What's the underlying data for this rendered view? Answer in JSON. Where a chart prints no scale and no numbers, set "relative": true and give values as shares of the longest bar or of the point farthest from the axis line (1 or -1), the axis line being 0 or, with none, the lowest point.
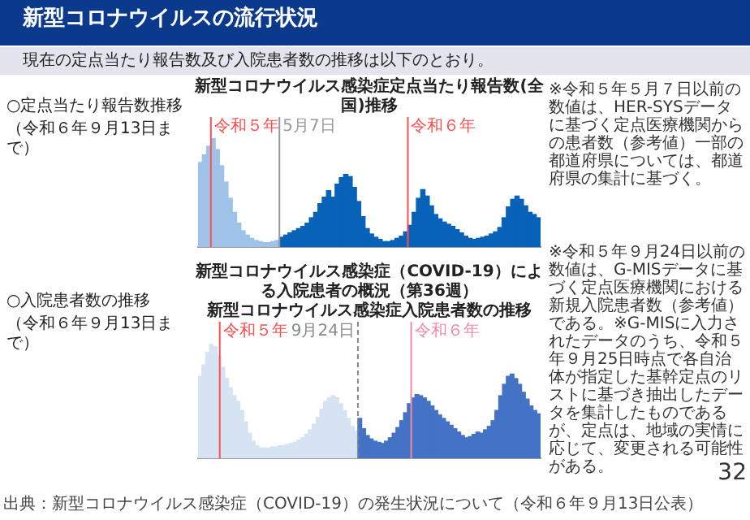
{
  "chart_data": [
    {
      "type": "bar",
      "title": "新型コロナウイルス感染症定点当たり報告数(全国)推移",
      "relative": true,
      "categories": [
        null,
        null,
        null,
        null,
        null,
        null,
        null,
        null,
        null,
        null,
        null,
        null,
        null,
        null,
        null,
        null,
        null,
        null,
        null,
        null,
        null,
        null,
        null,
        null,
        null,
        null,
        null,
        null,
        null,
        null,
        null,
        null,
        null,
        null,
        null,
        null,
        null,
        null,
        null,
        null,
        null,
        null,
        null,
        null,
        null,
        null,
        null,
        null,
        null,
        null,
        null,
        null,
        null,
        null,
        null,
        null,
        null,
        null,
        null,
        null,
        null,
        null,
        null,
        null,
        null,
        null,
        null,
        null,
        null,
        null,
        null,
        null,
        null,
        null,
        null,
        null,
        null,
        null,
        null,
        null
      ],
      "values": [
        0.78,
        0.85,
        0.93,
        1.0,
        0.9,
        0.75,
        0.6,
        0.45,
        0.32,
        0.22,
        0.15,
        0.11,
        0.08,
        0.06,
        0.05,
        0.04,
        0.04,
        0.05,
        0.06,
        0.09,
        0.11,
        0.13,
        0.15,
        0.17,
        0.19,
        0.22,
        0.27,
        0.32,
        0.4,
        0.46,
        0.52,
        0.46,
        0.58,
        0.64,
        0.67,
        0.65,
        0.55,
        0.42,
        0.28,
        0.17,
        0.12,
        0.09,
        0.07,
        0.05,
        0.05,
        0.06,
        0.08,
        0.1,
        0.14,
        0.2,
        0.32,
        0.45,
        0.53,
        0.47,
        0.38,
        0.3,
        0.26,
        0.23,
        0.21,
        0.19,
        0.16,
        0.13,
        0.1,
        0.08,
        0.07,
        0.08,
        0.09,
        0.1,
        0.12,
        0.14,
        0.18,
        0.27,
        0.37,
        0.44,
        0.47,
        0.44,
        0.38,
        0.32,
        0.3,
        0.27
      ],
      "colors": [
        "#9fc3e8",
        "#9fc3e8",
        "#9fc3e8",
        "#9fc3e8",
        "#9fc3e8",
        "#9fc3e8",
        "#9fc3e8",
        "#9fc3e8",
        "#9fc3e8",
        "#9fc3e8",
        "#9fc3e8",
        "#9fc3e8",
        "#9fc3e8",
        "#9fc3e8",
        "#9fc3e8",
        "#9fc3e8",
        "#9fc3e8",
        "#9fc3e8",
        "#9fc3e8",
        "#0862b8",
        "#0862b8",
        "#0862b8",
        "#0862b8",
        "#0862b8",
        "#0862b8",
        "#0862b8",
        "#0862b8",
        "#0862b8",
        "#0862b8",
        "#0862b8",
        "#0862b8",
        "#0862b8",
        "#0862b8",
        "#0862b8",
        "#0862b8",
        "#0862b8",
        "#0862b8",
        "#0862b8",
        "#0862b8",
        "#0862b8",
        "#0862b8",
        "#0862b8",
        "#0862b8",
        "#0862b8",
        "#0862b8",
        "#0862b8",
        "#0862b8",
        "#0862b8",
        "#0862b8",
        "#0862b8",
        "#0862b8",
        "#0862b8",
        "#0862b8",
        "#0862b8",
        "#0862b8",
        "#0862b8",
        "#0862b8",
        "#0862b8",
        "#0862b8",
        "#0862b8",
        "#0862b8",
        "#0862b8",
        "#0862b8",
        "#0862b8",
        "#0862b8",
        "#0862b8",
        "#0862b8",
        "#0862b8",
        "#0862b8",
        "#0862b8",
        "#0862b8",
        "#0862b8",
        "#0862b8",
        "#0862b8",
        "#0862b8",
        "#0862b8",
        "#0862b8",
        "#0862b8",
        "#0862b8",
        "#0862b8"
      ],
      "annotations": [
        "新型コロナウイルスの流行状況",
        "現在の定点当たり報告数及び入院患者数の推移は以下のとおり。",
        "○定点当たり報告数推移",
        "（令和６年９月13日まで）",
        "※令和５年５月７日以前の数値は、HER-SYSデータに基づく定点医療機関からの患者数（参考値）一部の都道府県については、都道府県の集計に基づく。",
        "令和５年",
        "5月7日",
        "令和６年"
      ]
    },
    {
      "type": "bar",
      "title": "新型コロナウイルス感染症（COVID-19）による入院患者の概況（第36週）",
      "subtitle": "新型コロナウイルス感染症入院患者数の推移",
      "relative": true,
      "categories": [
        null,
        null,
        null,
        null,
        null,
        null,
        null,
        null,
        null,
        null,
        null,
        null,
        null,
        null,
        null,
        null,
        null,
        null,
        null,
        null,
        null,
        null,
        null,
        null,
        null,
        null,
        null,
        null,
        null,
        null,
        null,
        null,
        null,
        null,
        null,
        null,
        null,
        null,
        null,
        null,
        null,
        null,
        null,
        null,
        null,
        null,
        null,
        null,
        null,
        null,
        null,
        null,
        null,
        null,
        null,
        null,
        null,
        null,
        null,
        null,
        null,
        null,
        null,
        null,
        null,
        null,
        null,
        null,
        null,
        null,
        null,
        null,
        null,
        null,
        null,
        null,
        null,
        null,
        null,
        null,
        null,
        null,
        null,
        null,
        null,
        null,
        null,
        null,
        null,
        null
      ],
      "values": [
        0.72,
        0.82,
        0.93,
        1.0,
        0.98,
        0.9,
        0.8,
        0.7,
        0.62,
        0.55,
        0.5,
        0.42,
        0.32,
        0.22,
        0.15,
        0.11,
        0.09,
        0.09,
        0.09,
        0.1,
        0.1,
        0.11,
        0.11,
        0.12,
        0.13,
        0.14,
        0.16,
        0.18,
        0.21,
        0.25,
        0.3,
        0.36,
        0.43,
        0.5,
        0.53,
        0.55,
        0.53,
        0.48,
        0.42,
        0.35,
        0.28,
        0.24,
        0.35,
        0.26,
        0.2,
        0.17,
        0.15,
        0.14,
        0.13,
        0.15,
        0.18,
        0.22,
        0.27,
        0.33,
        0.4,
        0.48,
        0.53,
        0.56,
        0.55,
        0.53,
        0.5,
        0.46,
        0.42,
        0.38,
        0.35,
        0.32,
        0.29,
        0.26,
        0.23,
        0.2,
        0.18,
        0.19,
        0.21,
        0.23,
        0.22,
        0.25,
        0.28,
        0.33,
        0.42,
        0.55,
        0.65,
        0.72,
        0.74,
        0.7,
        0.65,
        0.58,
        0.52,
        0.46,
        0.42,
        0.39
      ],
      "colors": [
        "#d6e3f3",
        "#d6e3f3",
        "#d6e3f3",
        "#d6e3f3",
        "#d6e3f3",
        "#d6e3f3",
        "#d6e3f3",
        "#d6e3f3",
        "#d6e3f3",
        "#d6e3f3",
        "#d6e3f3",
        "#d6e3f3",
        "#d6e3f3",
        "#d6e3f3",
        "#d6e3f3",
        "#d6e3f3",
        "#d6e3f3",
        "#d6e3f3",
        "#d6e3f3",
        "#d6e3f3",
        "#d6e3f3",
        "#d6e3f3",
        "#d6e3f3",
        "#d6e3f3",
        "#d6e3f3",
        "#d6e3f3",
        "#d6e3f3",
        "#d6e3f3",
        "#d6e3f3",
        "#d6e3f3",
        "#d6e3f3",
        "#d6e3f3",
        "#d6e3f3",
        "#d6e3f3",
        "#d6e3f3",
        "#d6e3f3",
        "#d6e3f3",
        "#d6e3f3",
        "#d6e3f3",
        "#d6e3f3",
        "#d6e3f3",
        "#d6e3f3",
        "#4472c4",
        "#4472c4",
        "#4472c4",
        "#4472c4",
        "#4472c4",
        "#4472c4",
        "#4472c4",
        "#4472c4",
        "#4472c4",
        "#4472c4",
        "#4472c4",
        "#4472c4",
        "#4472c4",
        "#4472c4",
        "#4472c4",
        "#4472c4",
        "#4472c4",
        "#4472c4",
        "#4472c4",
        "#4472c4",
        "#4472c4",
        "#4472c4",
        "#4472c4",
        "#4472c4",
        "#4472c4",
        "#4472c4",
        "#4472c4",
        "#4472c4",
        "#4472c4",
        "#4472c4",
        "#4472c4",
        "#4472c4",
        "#4472c4",
        "#4472c4",
        "#4472c4",
        "#4472c4",
        "#4472c4",
        "#4472c4",
        "#4472c4",
        "#4472c4",
        "#4472c4",
        "#4472c4",
        "#4472c4",
        "#4472c4",
        "#4472c4",
        "#4472c4",
        "#4472c4",
        "#4472c4"
      ],
      "annotations": [
        "○入院患者数の推移",
        "（令和６年９月13日まで）",
        "※令和５年９月24日以前の数値は、G-MISデータに基づく定点医療機関における新規入院患者数（参考値）である。※G-MISに入力されたデータのうち、令和５年９月25日時点で各自治体が指定した基幹定点のリストに基づき抽出したデータを集計したものであるが、定点は、地域の実情に応じて、変更される可能性がある。",
        "32",
        "出典：新型コロナウイルス感染症（COVID-19）の発生状況について（令和６年９月13日公表）",
        "令和５年",
        "9月24日",
        "令和６年"
      ]
    }
  ]
}
